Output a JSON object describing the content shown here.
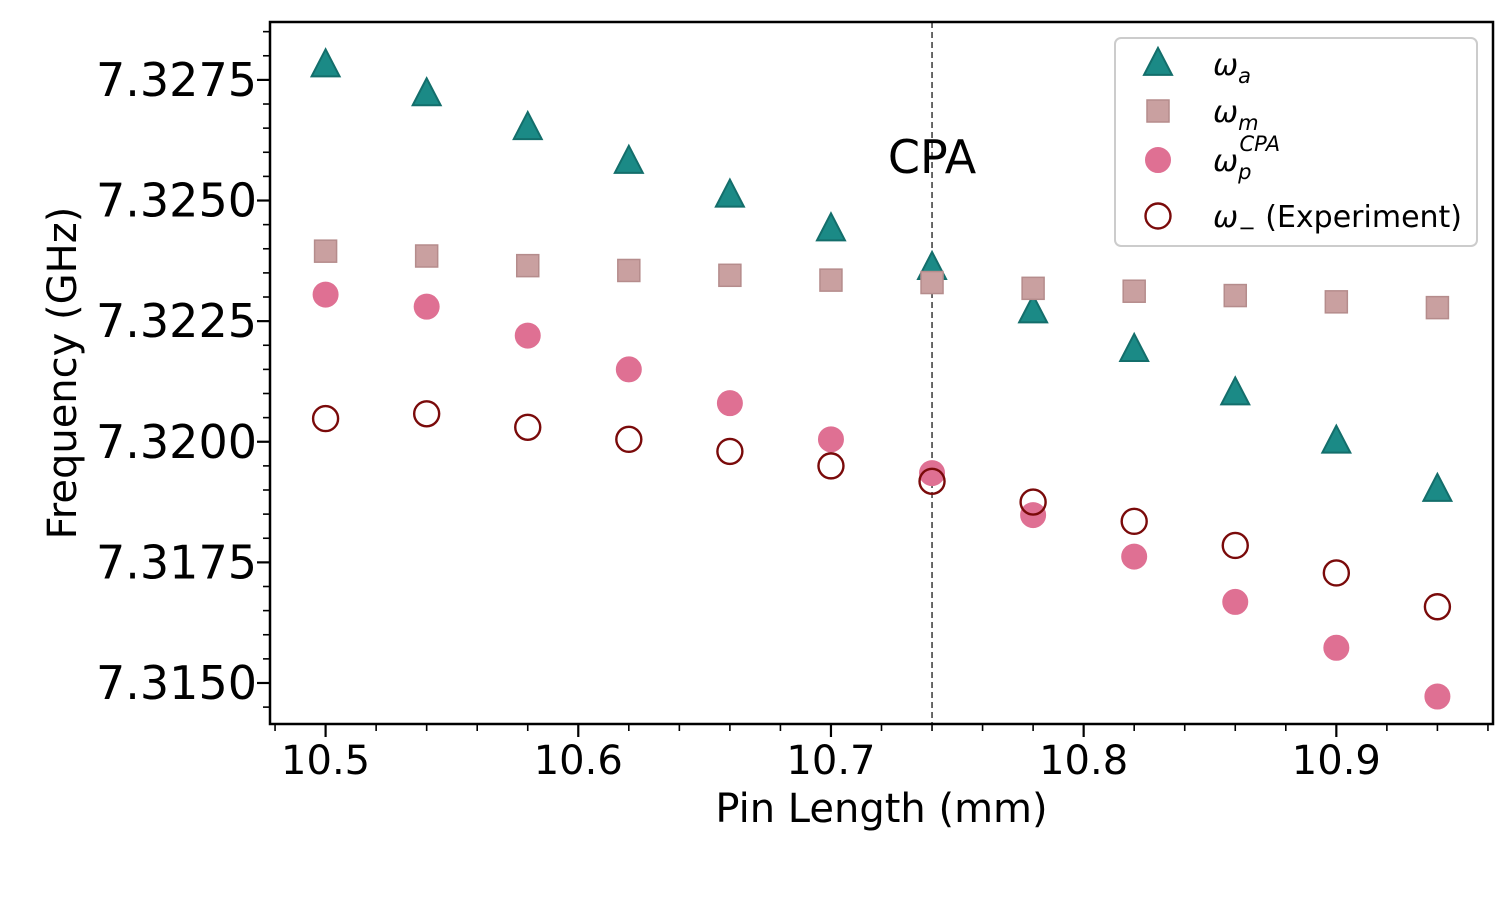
{
  "chart_data": {
    "type": "scatter",
    "title": "",
    "xlabel": "Pin Length (mm)",
    "ylabel": "Frequency (GHz)",
    "xlim": [
      10.478,
      10.962
    ],
    "ylim": [
      7.31415,
      7.3287
    ],
    "x_ticks": [
      10.5,
      10.6,
      10.7,
      10.8,
      10.9
    ],
    "x_tick_labels": [
      "10.5",
      "10.6",
      "10.7",
      "10.8",
      "10.9"
    ],
    "y_ticks": [
      7.3275,
      7.325,
      7.3225,
      7.32,
      7.3175,
      7.315
    ],
    "y_tick_labels": [
      "7.3275",
      "7.3250",
      "7.3225",
      "7.3200",
      "7.3175",
      "7.3150"
    ],
    "grid": false,
    "legend_position": "top-right",
    "annotations": [
      {
        "text": "CPA",
        "x": 10.74,
        "y": 7.3259,
        "vline_x": 10.74
      }
    ],
    "x": [
      10.5,
      10.54,
      10.58,
      10.62,
      10.66,
      10.7,
      10.74,
      10.78,
      10.82,
      10.86,
      10.9,
      10.94
    ],
    "series": [
      {
        "name": "ω_a",
        "legend": {
          "base": "ω",
          "sub": "a",
          "sup": "",
          "rest": ""
        },
        "marker": "triangle",
        "filled": true,
        "color": "#1b8a86",
        "edge": "#136e6b",
        "values": [
          7.3278,
          7.3272,
          7.3265,
          7.3258,
          7.3251,
          7.3244,
          7.3236,
          7.3227,
          7.3219,
          7.321,
          7.32,
          7.319
        ]
      },
      {
        "name": "ω_m",
        "legend": {
          "base": "ω",
          "sub": "m",
          "sup": "",
          "rest": ""
        },
        "marker": "square",
        "filled": true,
        "color": "#c9a0a0",
        "edge": "#b58c8c",
        "values": [
          7.32395,
          7.32385,
          7.32365,
          7.32355,
          7.32345,
          7.32335,
          7.3233,
          7.32318,
          7.32312,
          7.32303,
          7.3229,
          7.32278
        ]
      },
      {
        "name": "ω_p^CPA",
        "legend": {
          "base": "ω",
          "sub": "p",
          "sup": "CPA",
          "rest": ""
        },
        "marker": "circle",
        "filled": true,
        "color": "#df7093",
        "edge": "#df7093",
        "values": [
          7.32305,
          7.3228,
          7.3222,
          7.3215,
          7.3208,
          7.32005,
          7.31935,
          7.31848,
          7.31762,
          7.31668,
          7.31573,
          7.31472
        ]
      },
      {
        "name": "ω_− (Experiment)",
        "legend": {
          "base": "ω",
          "sub": "−",
          "sup": "",
          "rest": " (Experiment)"
        },
        "marker": "circle",
        "filled": false,
        "color": "#7a0a0a",
        "edge": "#7a0a0a",
        "values": [
          7.32048,
          7.32058,
          7.3203,
          7.32005,
          7.3198,
          7.3195,
          7.31918,
          7.31875,
          7.31835,
          7.31785,
          7.31728,
          7.31658
        ]
      }
    ]
  }
}
